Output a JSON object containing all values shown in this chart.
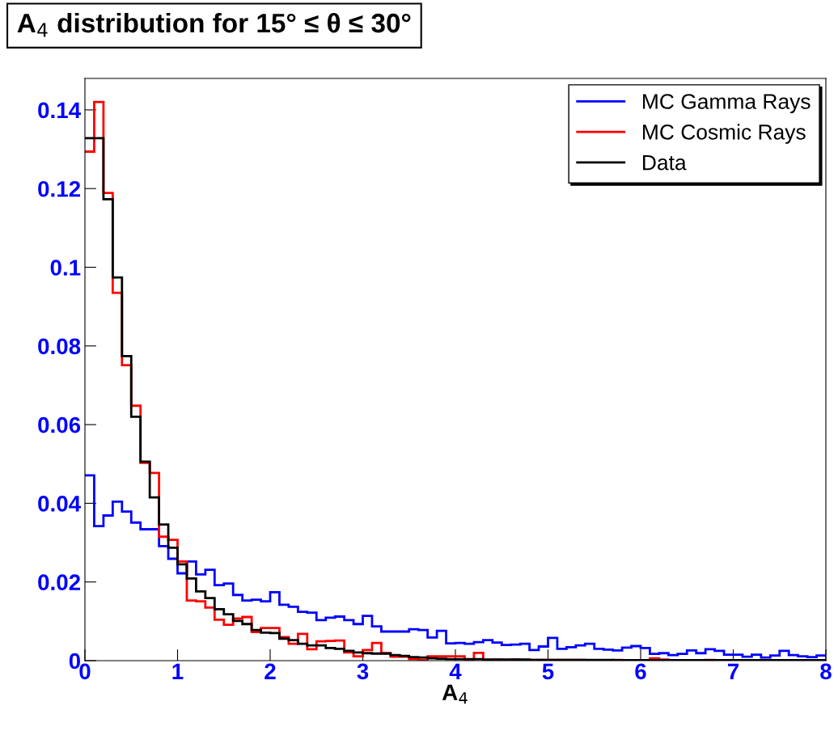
{
  "chart_data": {
    "type": "histogram",
    "title": "A$_{4}$ distribution for 15° ≤ θ ≤ 30°",
    "xlabel": "A$_{4}$",
    "bins": [
      0,
      0.1,
      0.2,
      0.3,
      0.4,
      0.5,
      0.6,
      0.7,
      0.8,
      0.9,
      1,
      1.1,
      1.2,
      1.3,
      1.4,
      1.5,
      1.6,
      1.7,
      1.8,
      1.9,
      2,
      2.1,
      2.2,
      2.3,
      2.4,
      2.5,
      2.6,
      2.7,
      2.8,
      2.9,
      3,
      3.1,
      3.2,
      3.3,
      3.4,
      3.5,
      3.6,
      3.7,
      3.8,
      3.9,
      4,
      4.1,
      4.2,
      4.3,
      4.4,
      4.5,
      4.6,
      4.7,
      4.8,
      4.9,
      5,
      5.1,
      5.2,
      5.3,
      5.4,
      5.5,
      5.6,
      5.7,
      5.8,
      5.9,
      6,
      6.1,
      6.2,
      6.3,
      6.4,
      6.5,
      6.6,
      6.7,
      6.8,
      6.9,
      7,
      7.1,
      7.2,
      7.3,
      7.4,
      7.5,
      7.6,
      7.7,
      7.8,
      7.9,
      8
    ],
    "series": [
      {
        "name": "MC Gamma Rays",
        "color": "#0000ff",
        "values": [
          0.0471,
          0.0342,
          0.0369,
          0.0404,
          0.0379,
          0.0351,
          0.0334,
          0.0334,
          0.0291,
          0.0259,
          0.0222,
          0.0252,
          0.0219,
          0.0231,
          0.0192,
          0.0196,
          0.0167,
          0.0153,
          0.0155,
          0.0151,
          0.0174,
          0.0142,
          0.0137,
          0.0124,
          0.0122,
          0.0103,
          0.0109,
          0.0112,
          0.0103,
          0.0093,
          0.0114,
          0.0087,
          0.0074,
          0.0074,
          0.0074,
          0.008,
          0.0078,
          0.0059,
          0.0076,
          0.0044,
          0.0045,
          0.0043,
          0.0047,
          0.0052,
          0.0046,
          0.004,
          0.0041,
          0.0043,
          0.0027,
          0.0036,
          0.0058,
          0.003,
          0.0034,
          0.0039,
          0.0043,
          0.003,
          0.0028,
          0.0026,
          0.0033,
          0.0037,
          0.0032,
          0.0017,
          0.0019,
          0.0014,
          0.0017,
          0.0026,
          0.0019,
          0.0029,
          0.0025,
          0.0015,
          0.0015,
          0.001,
          0.0015,
          0.0008,
          0.0013,
          0.0025,
          0.0014,
          0.0011,
          0.0009,
          0.0013
        ]
      },
      {
        "name": "MC Cosmic Rays",
        "color": "#ff0000",
        "values": [
          0.1294,
          0.142,
          0.1189,
          0.0935,
          0.0751,
          0.0648,
          0.0503,
          0.0477,
          0.0315,
          0.0307,
          0.0252,
          0.0153,
          0.0151,
          0.0135,
          0.0104,
          0.0091,
          0.0107,
          0.0111,
          0.0073,
          0.0083,
          0.0083,
          0.006,
          0.0043,
          0.0068,
          0.0029,
          0.0049,
          0.005,
          0.0051,
          0.0021,
          0.0011,
          0.0027,
          0.0045,
          0.0019,
          0.001,
          0.001,
          0.0004,
          0.0002,
          0.0011,
          0.0011,
          0.0011,
          0.0011,
          0.0002,
          0.002,
          0.0002,
          0.0003,
          0.0002,
          0.0003,
          0.0002,
          0.0002,
          0.0002,
          0.0002,
          0.0002,
          0.0002,
          0.0002,
          0.0001,
          0.0001,
          0.0001,
          0.0002,
          0.0001,
          0.0001,
          0.0001,
          0.0006,
          0.0003,
          0.0001,
          0.0001,
          0.0001,
          0.0001,
          0.0002,
          0.0001,
          0.0001,
          0.0001,
          0.0001,
          0.0001,
          0.0001,
          0.0001,
          0.0001,
          0.0001,
          0.0001,
          0.0001,
          0.0001
        ]
      },
      {
        "name": "Data",
        "color": "#000000",
        "values": [
          0.1328,
          0.1328,
          0.1173,
          0.0974,
          0.0774,
          0.062,
          0.0506,
          0.0415,
          0.0346,
          0.0287,
          0.0245,
          0.0209,
          0.0176,
          0.0159,
          0.0131,
          0.0118,
          0.0101,
          0.0093,
          0.0078,
          0.0071,
          0.007,
          0.0056,
          0.0052,
          0.0043,
          0.0039,
          0.0039,
          0.0032,
          0.003,
          0.0025,
          0.0021,
          0.0019,
          0.0018,
          0.0018,
          0.0014,
          0.0012,
          0.0009,
          0.0008,
          0.0006,
          0.0005,
          0.0004,
          0.0004,
          0.0004,
          0.0004,
          0.0003,
          0.0003,
          0.0003,
          0.0003,
          0.0003,
          0.0002,
          0.0002,
          0.0002,
          0.0002,
          0.0002,
          0.0002,
          0.0002,
          0.0002,
          0.0002,
          0.0001,
          0.0001,
          0.0001,
          0.0001,
          0.0001,
          0.0001,
          0.0001,
          0.0001,
          0.0001,
          0.0001,
          0.0001,
          0.0001,
          0.0001,
          0.0001,
          0.0001,
          0.0001,
          0.0001,
          0.0001,
          0.0001,
          0.0001,
          0.0001,
          0.0001,
          0.0001
        ]
      }
    ],
    "xlim": [
      0,
      8
    ],
    "xticks": [
      0,
      1,
      2,
      3,
      4,
      5,
      6,
      7,
      8
    ],
    "ylim": [
      0,
      0.148
    ],
    "yticks": [
      0,
      0.02,
      0.04,
      0.06,
      0.08,
      {
        "value": 0.1,
        "label": "0.1"
      },
      0.12,
      0.14
    ],
    "grid": false,
    "legend": "top right"
  }
}
